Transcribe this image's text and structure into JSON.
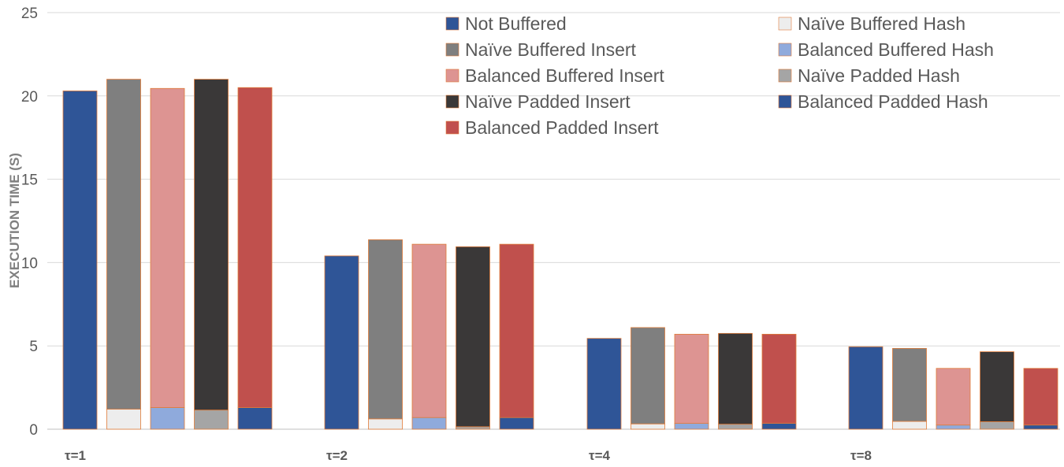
{
  "chart_data": {
    "type": "bar",
    "stacked_pairs": true,
    "ylabel": "EXECUTION TIME (S)",
    "ylim": [
      0,
      25
    ],
    "yticks": [
      0,
      5,
      10,
      15,
      20,
      25
    ],
    "grid": true,
    "legend_position": "top-right",
    "categories": [
      "τ=1",
      "τ=2",
      "τ=4",
      "τ=8"
    ],
    "series": [
      {
        "name": "Not Buffered",
        "color": "#2f5597",
        "values": [
          20.3,
          10.4,
          5.45,
          4.95
        ]
      },
      {
        "name": "Naïve Buffered Hash",
        "color": "#ededed",
        "values": [
          1.2,
          0.62,
          0.32,
          0.47
        ]
      },
      {
        "name": "Naïve Buffered Insert",
        "color": "#7f7f7f",
        "values": [
          19.8,
          10.75,
          5.78,
          4.38
        ]
      },
      {
        "name": "Balanced Buffered Hash",
        "color": "#8faadc",
        "values": [
          1.3,
          0.7,
          0.35,
          0.25
        ]
      },
      {
        "name": "Balanced Buffered Insert",
        "color": "#dd9492",
        "values": [
          19.15,
          10.4,
          5.35,
          3.4
        ]
      },
      {
        "name": "Naïve Padded Hash",
        "color": "#a5a5a5",
        "values": [
          1.15,
          0.15,
          0.3,
          0.45
        ]
      },
      {
        "name": "Naïve Padded Insert",
        "color": "#3a3838",
        "values": [
          19.85,
          10.8,
          5.45,
          4.2
        ]
      },
      {
        "name": "Balanced Padded Hash",
        "color": "#2f5597",
        "values": [
          1.3,
          0.7,
          0.35,
          0.25
        ]
      },
      {
        "name": "Balanced Padded Insert",
        "color": "#c0504d",
        "values": [
          19.2,
          10.4,
          5.35,
          3.4
        ]
      }
    ],
    "legend_order": [
      "Not Buffered",
      "Naïve Buffered Hash",
      "Naïve Buffered Insert",
      "Balanced Buffered Hash",
      "Balanced Buffered Insert",
      "Naïve Padded Hash",
      "Naïve Padded Insert",
      "Balanced Padded Hash",
      "Balanced Padded Insert"
    ],
    "bar_groups": [
      {
        "label": "Not Buffered",
        "stack": [
          "Not Buffered"
        ]
      },
      {
        "label": "Naïve Buffered",
        "stack": [
          "Naïve Buffered Hash",
          "Naïve Buffered Insert"
        ]
      },
      {
        "label": "Balanced Buffered",
        "stack": [
          "Balanced Buffered Hash",
          "Balanced Buffered Insert"
        ]
      },
      {
        "label": "Naïve Padded",
        "stack": [
          "Naïve Padded Hash",
          "Naïve Padded Insert"
        ]
      },
      {
        "label": "Balanced Padded",
        "stack": [
          "Balanced Padded Hash",
          "Balanced Padded Insert"
        ]
      }
    ]
  }
}
